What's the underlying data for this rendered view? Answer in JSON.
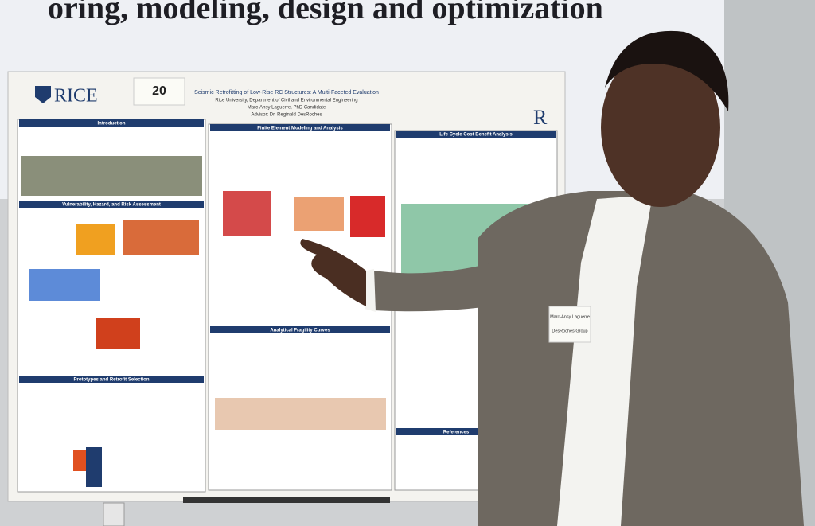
{
  "banner": {
    "text": "oring, modeling, design and optimization"
  },
  "poster": {
    "logo": "RICE",
    "number": "20",
    "title": "Seismic Retrofitting of Low-Rise RC Structures: A Multi-Faceted Evaluation",
    "affiliation": "Rice University, Department of Civil and Environmental Engineering",
    "author": "Marc-Ansy Laguerre, PhD Candidate",
    "advisor": "Advisor: Dr. Reginald DesRoches",
    "sections": [
      "Introduction",
      "Vulnerability, Hazard, and Risk Assessment",
      "Prototypes and Retrofit Selection",
      "Finite Element Modeling and Analysis",
      "Analytical Fragility Curves",
      "Life Cycle Cost Benefit Analysis",
      "References"
    ]
  },
  "name_tag": {
    "name": "Marc-Ansy Laguerre",
    "group": "DesRoches Group"
  }
}
